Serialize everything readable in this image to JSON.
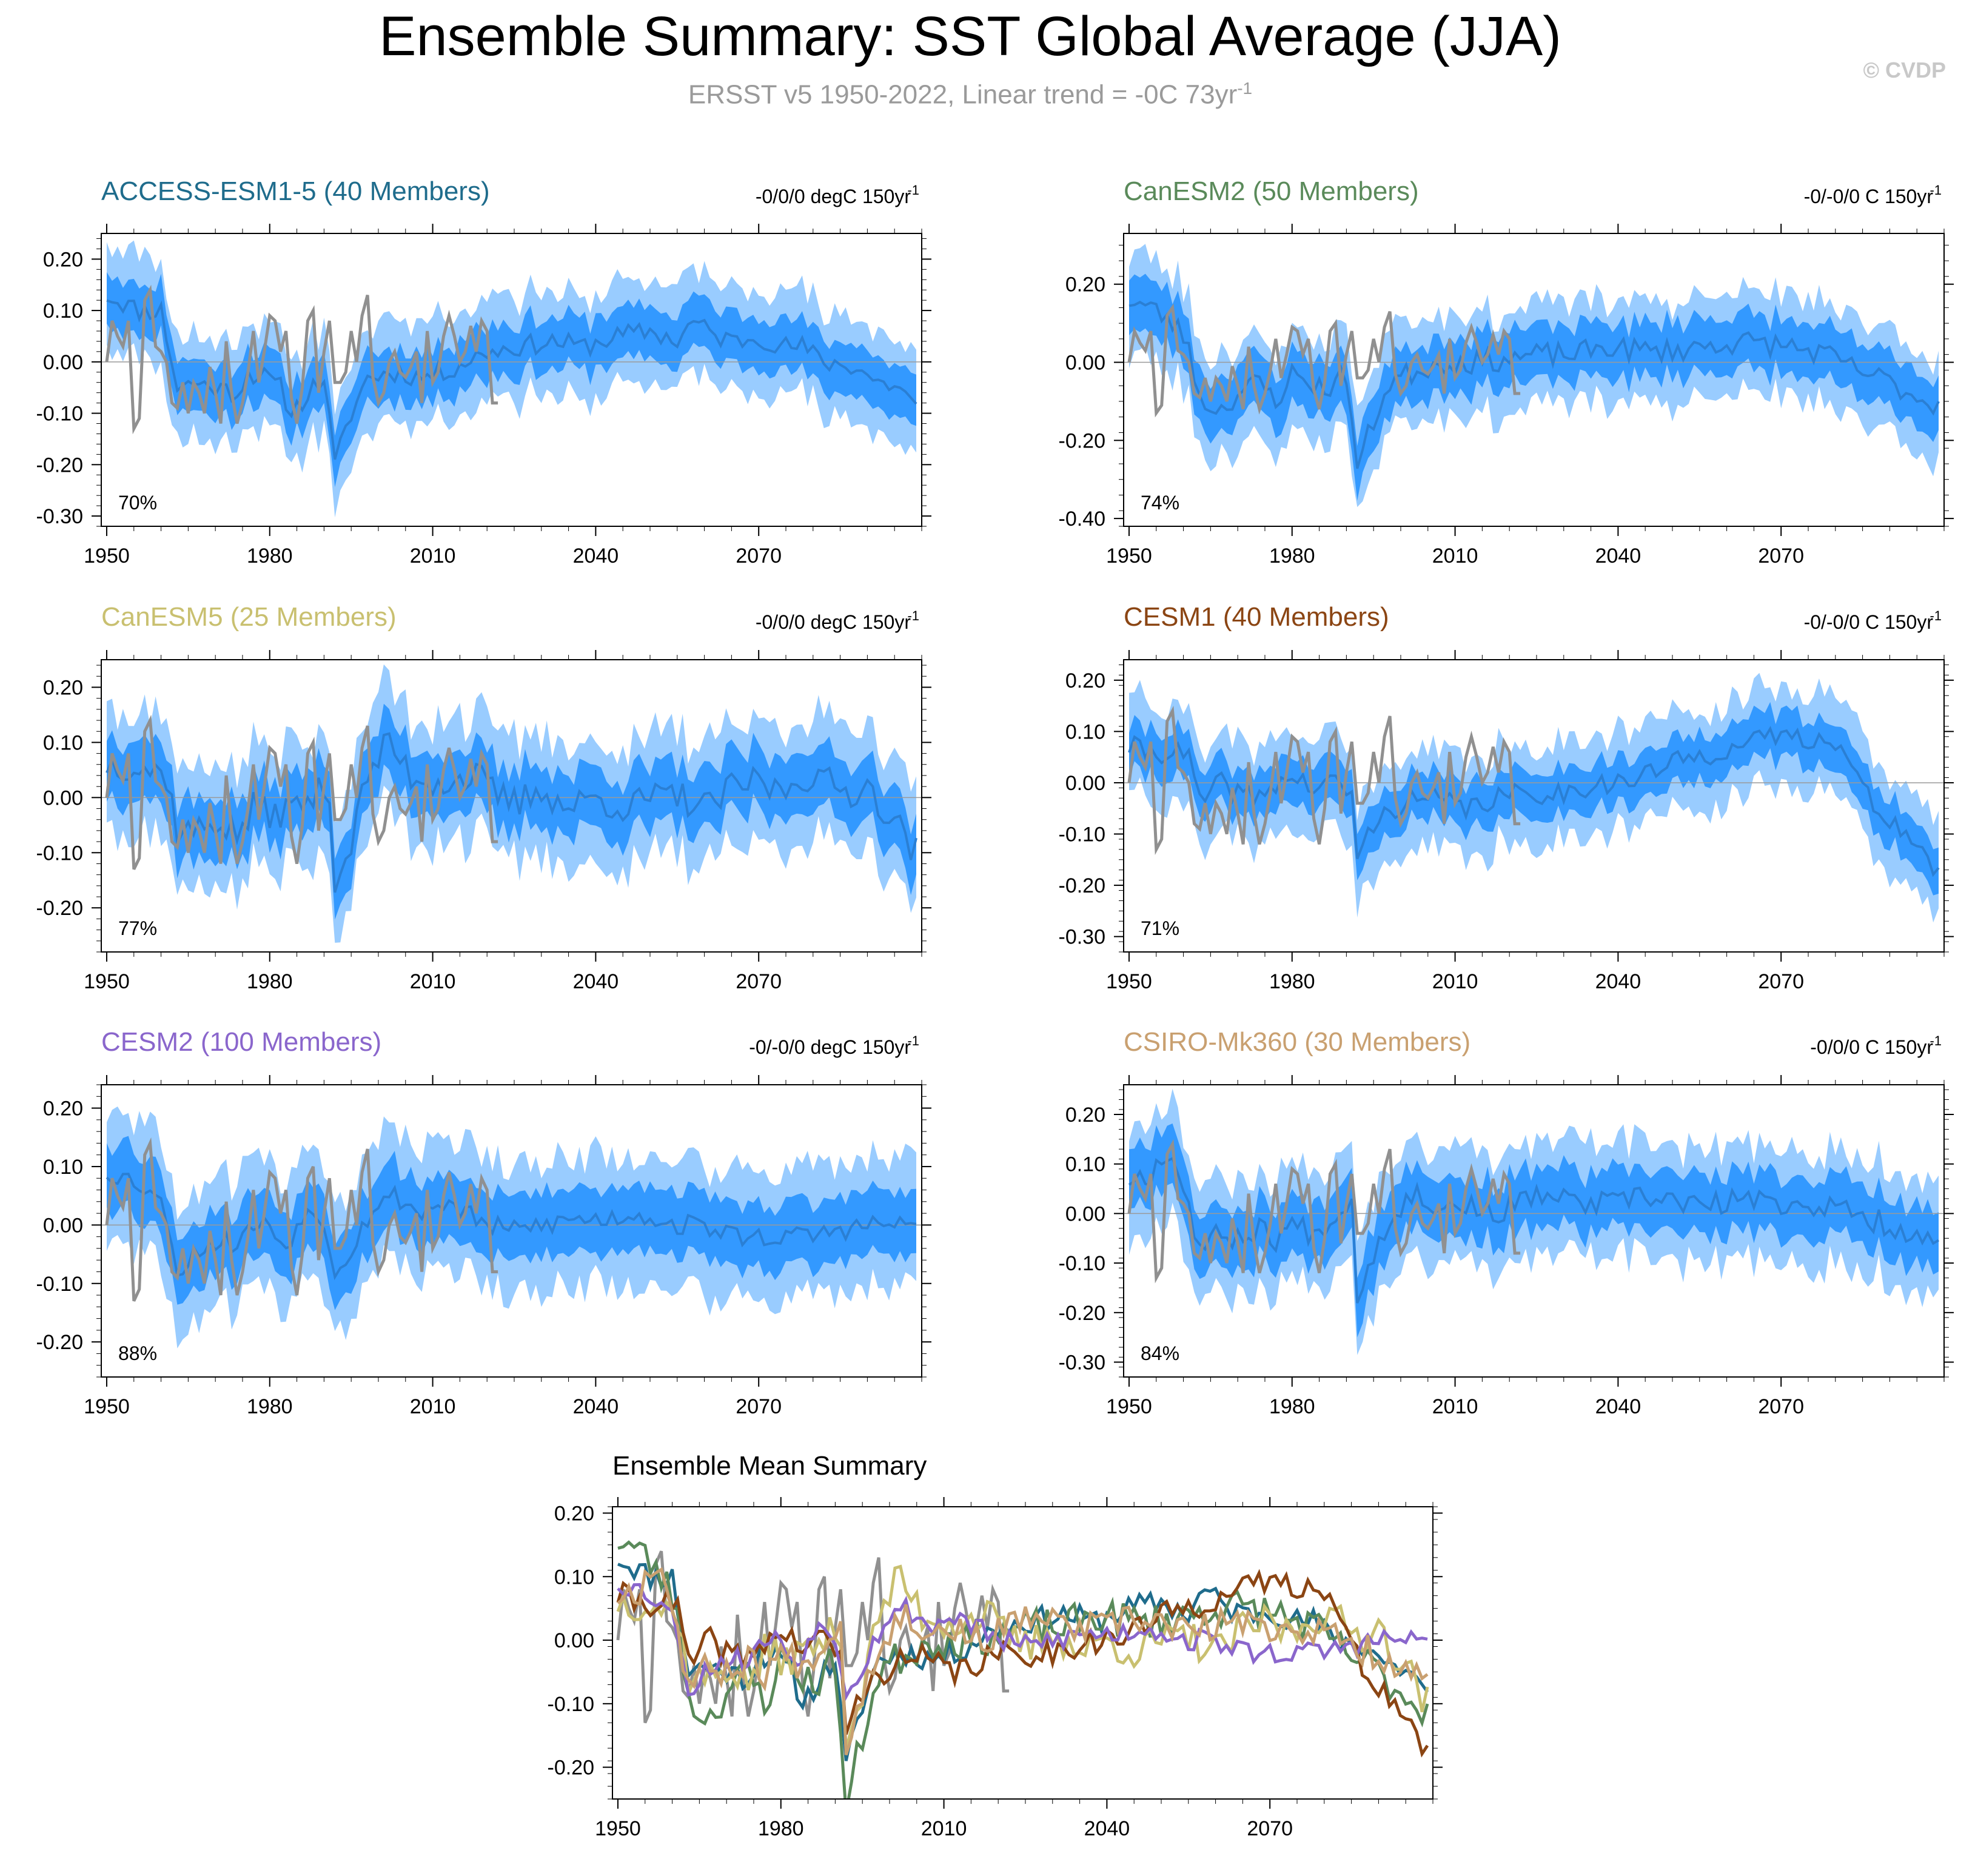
{
  "page": {
    "title": "Ensemble Summary: SST Global Average (JJA)",
    "subtitle_main": "ERSST v5 1950-2022, Linear trend = -0C 73yr",
    "subtitle_sup": "-1",
    "copyright": "© CVDP"
  },
  "colors": {
    "outer_band": "#99ccff",
    "inner_band": "#3399ff",
    "ensemble_mean": "#2a7fd4",
    "observations": "#909090",
    "zero_line": "#9a9a9a"
  },
  "chart_data": [
    {
      "type": "area",
      "id": "access",
      "title": "ACCESS-ESM1-5 (40 Members)",
      "title_color": "#1f6c8c",
      "trend": "-0/0/0 degC 150yr",
      "trend_sup": "-1",
      "percent": "70%",
      "xlim": [
        1949,
        2100
      ],
      "ylim": [
        -0.32,
        0.25
      ],
      "x_ticks": [
        1950,
        1980,
        2010,
        2040,
        2070
      ],
      "y_ticks": [
        0.2,
        0.1,
        0.0,
        -0.1,
        -0.2,
        -0.3
      ],
      "y_tick_labels": [
        "0.20",
        "0.10",
        "0.00",
        "-0.10",
        "-0.20",
        "-0.30"
      ],
      "mean_knots": [
        [
          1950,
          0.13
        ],
        [
          1956,
          0.1
        ],
        [
          1960,
          0.1
        ],
        [
          1963,
          -0.05
        ],
        [
          1966,
          -0.04
        ],
        [
          1970,
          -0.05
        ],
        [
          1974,
          -0.06
        ],
        [
          1976,
          -0.02
        ],
        [
          1979,
          -0.03
        ],
        [
          1982,
          -0.05
        ],
        [
          1984,
          -0.1
        ],
        [
          1988,
          -0.05
        ],
        [
          1990,
          -0.03
        ],
        [
          1992,
          -0.2
        ],
        [
          1995,
          -0.1
        ],
        [
          1998,
          -0.03
        ],
        [
          2003,
          -0.02
        ],
        [
          2008,
          -0.03
        ],
        [
          2012,
          -0.02
        ],
        [
          2016,
          0.0
        ],
        [
          2020,
          0.02
        ],
        [
          2026,
          0.03
        ],
        [
          2032,
          0.04
        ],
        [
          2038,
          0.03
        ],
        [
          2044,
          0.05
        ],
        [
          2050,
          0.06
        ],
        [
          2055,
          0.04
        ],
        [
          2058,
          0.08
        ],
        [
          2062,
          0.05
        ],
        [
          2066,
          0.04
        ],
        [
          2070,
          0.05
        ],
        [
          2074,
          0.03
        ],
        [
          2078,
          0.03
        ],
        [
          2082,
          0.0
        ],
        [
          2088,
          -0.01
        ],
        [
          2092,
          -0.04
        ],
        [
          2096,
          -0.05
        ],
        [
          2099,
          -0.09
        ]
      ],
      "inner_half": 0.05,
      "outer_half": 0.1,
      "noise_amp": 0.02,
      "seed": 11
    },
    {
      "type": "area",
      "id": "canesm2",
      "title": "CanESM2 (50 Members)",
      "title_color": "#5a8a5a",
      "trend": "-0/-0/0 C 150yr",
      "trend_sup": "-1",
      "percent": "74%",
      "xlim": [
        1949,
        2100
      ],
      "ylim": [
        -0.42,
        0.33
      ],
      "x_ticks": [
        1950,
        1980,
        2010,
        2040,
        2070
      ],
      "y_ticks": [
        0.2,
        0.0,
        -0.2,
        -0.4
      ],
      "y_tick_labels": [
        "0.20",
        "0.00",
        "-0.20",
        "-0.40"
      ],
      "mean_knots": [
        [
          1950,
          0.16
        ],
        [
          1954,
          0.14
        ],
        [
          1958,
          0.1
        ],
        [
          1961,
          0.05
        ],
        [
          1963,
          -0.1
        ],
        [
          1967,
          -0.12
        ],
        [
          1970,
          -0.08
        ],
        [
          1974,
          -0.05
        ],
        [
          1977,
          -0.1
        ],
        [
          1980,
          -0.03
        ],
        [
          1983,
          -0.05
        ],
        [
          1986,
          -0.07
        ],
        [
          1990,
          -0.03
        ],
        [
          1992,
          -0.27
        ],
        [
          1995,
          -0.15
        ],
        [
          1998,
          -0.05
        ],
        [
          2003,
          -0.02
        ],
        [
          2008,
          0.0
        ],
        [
          2014,
          0.0
        ],
        [
          2020,
          0.01
        ],
        [
          2026,
          0.02
        ],
        [
          2032,
          0.02
        ],
        [
          2038,
          0.04
        ],
        [
          2044,
          0.03
        ],
        [
          2050,
          0.03
        ],
        [
          2055,
          0.04
        ],
        [
          2060,
          0.05
        ],
        [
          2066,
          0.05
        ],
        [
          2072,
          0.04
        ],
        [
          2078,
          0.02
        ],
        [
          2084,
          -0.02
        ],
        [
          2090,
          -0.05
        ],
        [
          2095,
          -0.09
        ],
        [
          2099,
          -0.11
        ]
      ],
      "inner_half": 0.07,
      "outer_half": 0.13,
      "noise_amp": 0.03,
      "seed": 23
    },
    {
      "type": "area",
      "id": "canesm5",
      "title": "CanESM5 (25 Members)",
      "title_color": "#c9c070",
      "trend": "-0/0/0 degC 150yr",
      "trend_sup": "-1",
      "percent": "77%",
      "xlim": [
        1949,
        2100
      ],
      "ylim": [
        -0.28,
        0.25
      ],
      "x_ticks": [
        1950,
        1980,
        2010,
        2040,
        2070
      ],
      "y_ticks": [
        0.2,
        0.1,
        0.0,
        -0.1,
        -0.2
      ],
      "y_tick_labels": [
        "0.20",
        "0.10",
        "0.00",
        "-0.10",
        "-0.20"
      ],
      "mean_knots": [
        [
          1950,
          0.06
        ],
        [
          1954,
          0.06
        ],
        [
          1958,
          0.05
        ],
        [
          1961,
          0.04
        ],
        [
          1963,
          -0.06
        ],
        [
          1967,
          -0.06
        ],
        [
          1970,
          -0.04
        ],
        [
          1974,
          -0.07
        ],
        [
          1977,
          -0.02
        ],
        [
          1980,
          -0.03
        ],
        [
          1984,
          -0.02
        ],
        [
          1988,
          0.0
        ],
        [
          1991,
          0.02
        ],
        [
          1992,
          -0.16
        ],
        [
          1995,
          -0.08
        ],
        [
          1998,
          0.04
        ],
        [
          2002,
          0.1
        ],
        [
          2006,
          0.04
        ],
        [
          2010,
          0.03
        ],
        [
          2014,
          0.03
        ],
        [
          2018,
          0.04
        ],
        [
          2022,
          0.0
        ],
        [
          2026,
          -0.01
        ],
        [
          2030,
          0.02
        ],
        [
          2034,
          -0.02
        ],
        [
          2040,
          0.0
        ],
        [
          2046,
          -0.02
        ],
        [
          2050,
          0.0
        ],
        [
          2056,
          0.0
        ],
        [
          2060,
          -0.02
        ],
        [
          2066,
          0.02
        ],
        [
          2070,
          0.03
        ],
        [
          2074,
          0.01
        ],
        [
          2078,
          0.04
        ],
        [
          2082,
          0.03
        ],
        [
          2086,
          0.01
        ],
        [
          2090,
          0.02
        ],
        [
          2094,
          -0.03
        ],
        [
          2099,
          -0.1
        ]
      ],
      "inner_half": 0.055,
      "outer_half": 0.11,
      "noise_amp": 0.03,
      "seed": 37
    },
    {
      "type": "area",
      "id": "cesm1",
      "title": "CESM1 (40 Members)",
      "title_color": "#8b4513",
      "trend": "-0/-0/0 C 150yr",
      "trend_sup": "-1",
      "percent": "71%",
      "xlim": [
        1949,
        2100
      ],
      "ylim": [
        -0.33,
        0.24
      ],
      "x_ticks": [
        1950,
        1980,
        2010,
        2040,
        2070
      ],
      "y_ticks": [
        0.2,
        0.1,
        0.0,
        -0.1,
        -0.2,
        -0.3
      ],
      "y_tick_labels": [
        "0.20",
        "0.10",
        "0.00",
        "-0.10",
        "-0.20",
        "-0.30"
      ],
      "mean_knots": [
        [
          1950,
          0.07
        ],
        [
          1954,
          0.06
        ],
        [
          1958,
          0.06
        ],
        [
          1961,
          0.05
        ],
        [
          1963,
          -0.04
        ],
        [
          1967,
          0.0
        ],
        [
          1970,
          -0.02
        ],
        [
          1974,
          -0.03
        ],
        [
          1977,
          0.0
        ],
        [
          1980,
          0.01
        ],
        [
          1984,
          -0.01
        ],
        [
          1988,
          0.0
        ],
        [
          1991,
          -0.02
        ],
        [
          1992,
          -0.15
        ],
        [
          1995,
          -0.08
        ],
        [
          2000,
          -0.04
        ],
        [
          2006,
          -0.03
        ],
        [
          2012,
          -0.05
        ],
        [
          2018,
          -0.03
        ],
        [
          2024,
          -0.02
        ],
        [
          2030,
          -0.02
        ],
        [
          2036,
          0.0
        ],
        [
          2042,
          0.0
        ],
        [
          2048,
          0.03
        ],
        [
          2054,
          0.05
        ],
        [
          2058,
          0.06
        ],
        [
          2062,
          0.07
        ],
        [
          2066,
          0.08
        ],
        [
          2070,
          0.1
        ],
        [
          2074,
          0.08
        ],
        [
          2078,
          0.1
        ],
        [
          2082,
          0.05
        ],
        [
          2086,
          -0.03
        ],
        [
          2090,
          -0.07
        ],
        [
          2094,
          -0.11
        ],
        [
          2097,
          -0.16
        ],
        [
          2099,
          -0.17
        ]
      ],
      "inner_half": 0.045,
      "outer_half": 0.095,
      "noise_amp": 0.022,
      "seed": 41
    },
    {
      "type": "area",
      "id": "cesm2",
      "title": "CESM2 (100 Members)",
      "title_color": "#8a66cc",
      "trend": "-0/-0/0 degC 150yr",
      "trend_sup": "-1",
      "percent": "88%",
      "xlim": [
        1949,
        2100
      ],
      "ylim": [
        -0.26,
        0.24
      ],
      "x_ticks": [
        1950,
        1980,
        2010,
        2040,
        2070
      ],
      "y_ticks": [
        0.2,
        0.1,
        0.0,
        -0.1,
        -0.2
      ],
      "y_tick_labels": [
        "0.20",
        "0.10",
        "0.00",
        "-0.10",
        "-0.20"
      ],
      "mean_knots": [
        [
          1950,
          0.09
        ],
        [
          1954,
          0.08
        ],
        [
          1958,
          0.06
        ],
        [
          1961,
          0.02
        ],
        [
          1963,
          -0.08
        ],
        [
          1967,
          -0.04
        ],
        [
          1970,
          -0.03
        ],
        [
          1974,
          -0.03
        ],
        [
          1977,
          0.0
        ],
        [
          1980,
          0.0
        ],
        [
          1983,
          -0.04
        ],
        [
          1986,
          0.02
        ],
        [
          1990,
          0.01
        ],
        [
          1992,
          -0.08
        ],
        [
          1995,
          -0.04
        ],
        [
          1999,
          0.03
        ],
        [
          2003,
          0.05
        ],
        [
          2008,
          0.02
        ],
        [
          2012,
          0.04
        ],
        [
          2016,
          0.02
        ],
        [
          2020,
          0.0
        ],
        [
          2024,
          -0.01
        ],
        [
          2030,
          0.0
        ],
        [
          2036,
          0.01
        ],
        [
          2042,
          0.01
        ],
        [
          2048,
          0.02
        ],
        [
          2054,
          0.0
        ],
        [
          2060,
          0.0
        ],
        [
          2066,
          -0.02
        ],
        [
          2072,
          -0.02
        ],
        [
          2078,
          -0.02
        ],
        [
          2084,
          -0.01
        ],
        [
          2090,
          0.0
        ],
        [
          2096,
          0.0
        ],
        [
          2099,
          0.0
        ]
      ],
      "inner_half": 0.055,
      "outer_half": 0.11,
      "noise_amp": 0.018,
      "seed": 53
    },
    {
      "type": "area",
      "id": "csiro",
      "title": "CSIRO-Mk360 (30 Members)",
      "title_color": "#c9a070",
      "trend": "-0/0/0 C 150yr",
      "trend_sup": "-1",
      "percent": "84%",
      "xlim": [
        1949,
        2100
      ],
      "ylim": [
        -0.33,
        0.26
      ],
      "x_ticks": [
        1950,
        1980,
        2010,
        2040,
        2070
      ],
      "y_ticks": [
        0.2,
        0.1,
        0.0,
        -0.1,
        -0.2,
        -0.3
      ],
      "y_tick_labels": [
        "0.20",
        "0.10",
        "0.00",
        "-0.10",
        "-0.20",
        "-0.30"
      ],
      "mean_knots": [
        [
          1950,
          0.07
        ],
        [
          1954,
          0.08
        ],
        [
          1957,
          0.13
        ],
        [
          1960,
          0.06
        ],
        [
          1963,
          -0.07
        ],
        [
          1967,
          -0.04
        ],
        [
          1970,
          -0.05
        ],
        [
          1974,
          -0.03
        ],
        [
          1977,
          -0.05
        ],
        [
          1980,
          -0.02
        ],
        [
          1984,
          -0.04
        ],
        [
          1988,
          0.0
        ],
        [
          1991,
          0.02
        ],
        [
          1992,
          -0.16
        ],
        [
          1995,
          -0.08
        ],
        [
          1999,
          0.01
        ],
        [
          2003,
          0.04
        ],
        [
          2008,
          0.01
        ],
        [
          2012,
          0.02
        ],
        [
          2016,
          0.0
        ],
        [
          2020,
          0.01
        ],
        [
          2026,
          0.04
        ],
        [
          2032,
          0.02
        ],
        [
          2038,
          0.02
        ],
        [
          2044,
          0.03
        ],
        [
          2050,
          0.03
        ],
        [
          2056,
          0.01
        ],
        [
          2062,
          0.03
        ],
        [
          2068,
          0.02
        ],
        [
          2074,
          0.02
        ],
        [
          2080,
          0.01
        ],
        [
          2086,
          -0.01
        ],
        [
          2092,
          -0.03
        ],
        [
          2096,
          -0.05
        ],
        [
          2099,
          -0.07
        ]
      ],
      "inner_half": 0.06,
      "outer_half": 0.115,
      "noise_amp": 0.025,
      "seed": 67
    },
    {
      "type": "line",
      "id": "summary",
      "title": "Ensemble Mean Summary",
      "xlim": [
        1949,
        2100
      ],
      "ylim": [
        -0.25,
        0.21
      ],
      "x_ticks": [
        1950,
        1980,
        2010,
        2040,
        2070
      ],
      "y_ticks": [
        0.2,
        0.1,
        0.0,
        -0.1,
        -0.2
      ],
      "y_tick_labels": [
        "0.20",
        "0.10",
        "0.00",
        "-0.10",
        "-0.20"
      ],
      "series_colors": {
        "access": "#1f6c8c",
        "canesm2": "#5a8a5a",
        "canesm5": "#c9c070",
        "cesm1": "#8b4513",
        "cesm2": "#8a66cc",
        "csiro": "#c9a070",
        "obs": "#909090"
      }
    }
  ],
  "observations": {
    "name": "ERSST v5",
    "years": [
      1950,
      2022
    ],
    "values": [
      0.0,
      0.08,
      0.05,
      0.03,
      0.08,
      -0.13,
      -0.11,
      0.12,
      0.14,
      0.03,
      0.02,
      0.0,
      -0.08,
      -0.09,
      -0.04,
      -0.1,
      -0.04,
      -0.06,
      -0.1,
      -0.01,
      -0.06,
      -0.12,
      0.04,
      -0.06,
      -0.12,
      -0.08,
      -0.02,
      0.06,
      -0.04,
      0.02,
      0.09,
      0.08,
      0.02,
      0.06,
      -0.07,
      -0.12,
      -0.05,
      0.08,
      0.1,
      -0.06,
      0.02,
      0.08,
      -0.04,
      -0.04,
      -0.02,
      0.06,
      0.0,
      0.09,
      0.13,
      -0.03,
      -0.08,
      -0.06,
      0.0,
      0.02,
      -0.02,
      -0.03,
      -0.01,
      0.02,
      -0.08,
      0.06,
      -0.04,
      -0.02,
      0.05,
      0.09,
      0.05,
      0.0,
      0.02,
      0.07,
      0.02,
      0.08,
      0.06,
      -0.08,
      -0.08
    ]
  }
}
